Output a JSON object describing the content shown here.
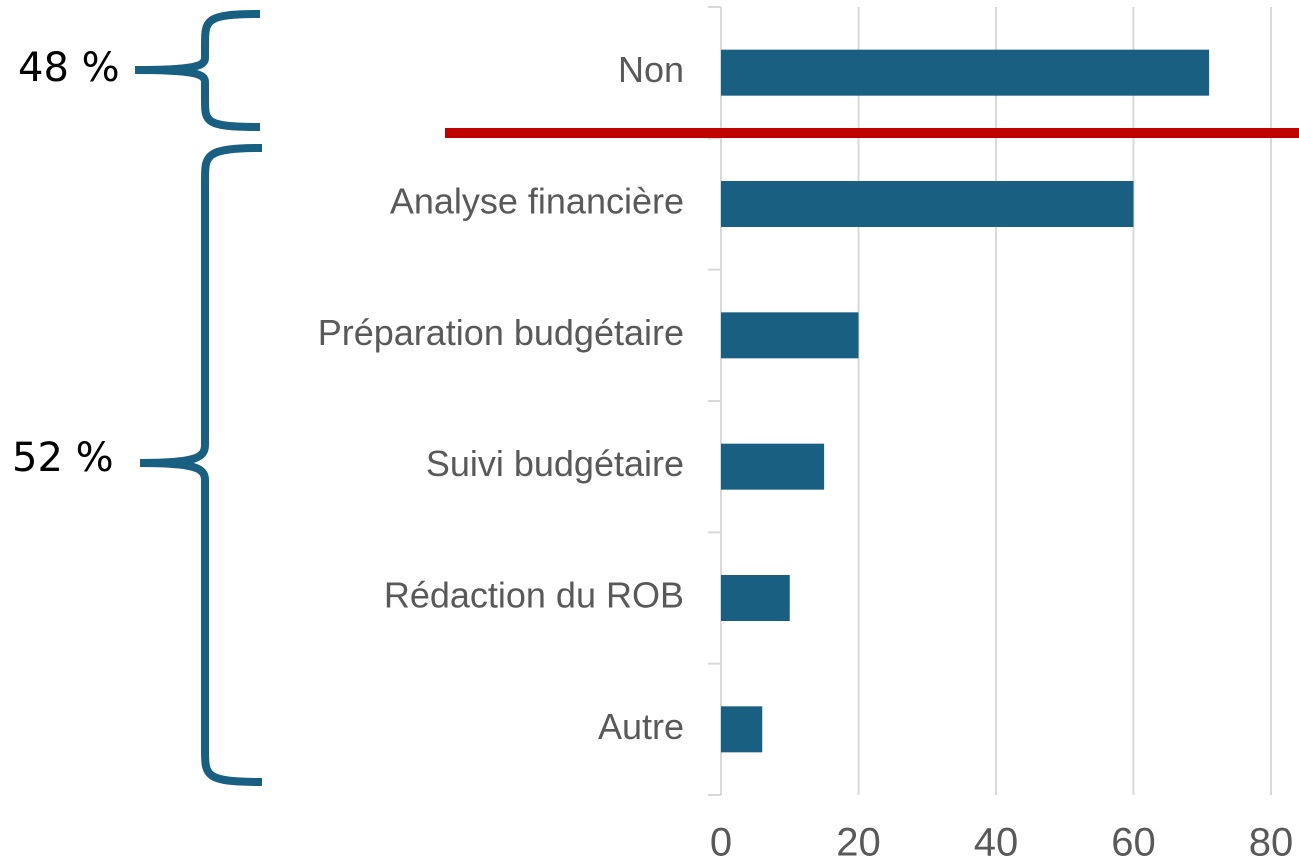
{
  "chart_data": {
    "type": "bar",
    "orientation": "horizontal",
    "categories": [
      "Non",
      "Analyse financière",
      "Préparation budgétaire",
      "Suivi budgétaire",
      "Rédaction du ROB",
      "Autre"
    ],
    "values": [
      71,
      60,
      20,
      15,
      10,
      6
    ],
    "color": "#195f82",
    "xlim": [
      0,
      80
    ],
    "xticks": [
      0,
      20,
      40,
      60,
      80
    ],
    "grid": true,
    "annotations": [
      "48 %",
      "52 %"
    ]
  }
}
